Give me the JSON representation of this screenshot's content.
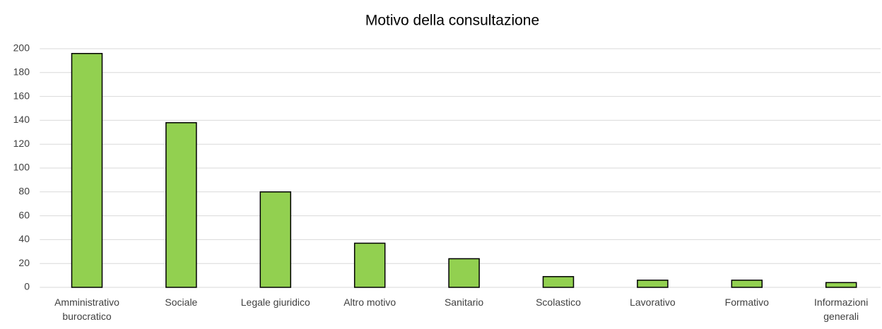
{
  "chart_data": {
    "type": "bar",
    "title": "Motivo della consultazione",
    "categories": [
      "Amministrativo burocratico",
      "Sociale",
      "Legale giuridico",
      "Altro motivo",
      "Sanitario",
      "Scolastico",
      "Lavorativo",
      "Formativo",
      "Informazioni generali"
    ],
    "values": [
      196,
      138,
      80,
      37,
      24,
      9,
      6,
      6,
      4
    ],
    "color": "#92d050",
    "ylim": [
      0,
      200
    ],
    "yticks": [
      0,
      20,
      40,
      60,
      80,
      100,
      120,
      140,
      160,
      180,
      200
    ],
    "grid": true
  }
}
